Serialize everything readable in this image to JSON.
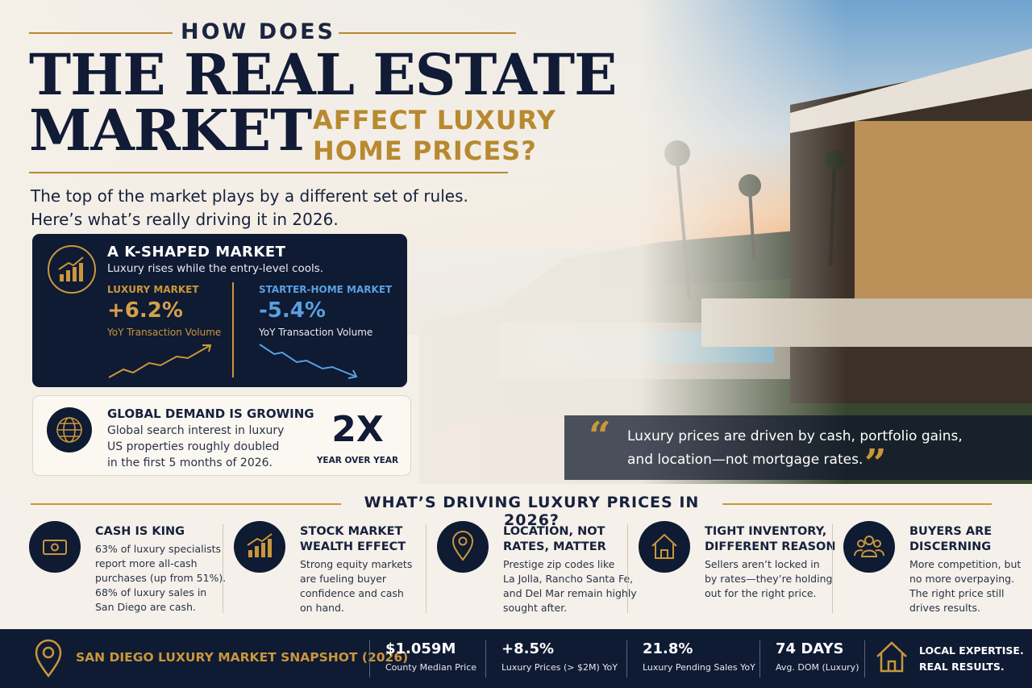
{
  "header": {
    "kicker": "HOW DOES",
    "title_line1": "THE REAL ESTATE",
    "title_line2": "MARKET",
    "accent_lines": [
      "AFFECT LUXURY",
      "HOME PRICES?"
    ]
  },
  "intro": [
    "The top of the market plays by a different set of rules.",
    "Here’s what’s really driving it in 2026."
  ],
  "k_market": {
    "title": "A K-SHAPED MARKET",
    "subtitle": "Luxury rises while the entry-level cools.",
    "luxury": {
      "label": "LUXURY MARKET",
      "value": "+6.2%",
      "caption": "YoY Transaction Volume"
    },
    "starter": {
      "label": "STARTER-HOME MARKET",
      "value": "-5.4%",
      "caption": "YoY Transaction Volume"
    }
  },
  "global": {
    "title": "GLOBAL DEMAND IS GROWING",
    "text": [
      "Global search interest in luxury",
      "US properties roughly doubled",
      "in the first 5 months of 2026."
    ],
    "figure": "2X",
    "figure_caption": "YEAR OVER YEAR"
  },
  "quote": [
    "Luxury prices are driven by cash, portfolio gains,",
    "and location—not mortgage rates."
  ],
  "drivers": {
    "heading": "WHAT’S DRIVING LUXURY PRICES IN 2026?",
    "items": [
      {
        "title": [
          "CASH IS KING"
        ],
        "text": [
          "63% of luxury specialists",
          "report more all-cash",
          "purchases (up from 51%).",
          "68% of luxury sales in",
          "San Diego are cash."
        ]
      },
      {
        "title": [
          "STOCK MARKET",
          "WEALTH EFFECT"
        ],
        "text": [
          "Strong equity markets",
          "are fueling buyer",
          "confidence and cash",
          "on hand."
        ]
      },
      {
        "title": [
          "LOCATION, NOT",
          "RATES, MATTER"
        ],
        "text": [
          "Prestige zip codes like",
          "La Jolla, Rancho Santa Fe,",
          "and Del Mar remain highly",
          "sought after."
        ]
      },
      {
        "title": [
          "TIGHT INVENTORY,",
          "DIFFERENT REASON"
        ],
        "text": [
          "Sellers aren’t locked in",
          "by rates—they’re holding",
          "out for the right price."
        ]
      },
      {
        "title": [
          "BUYERS ARE",
          "DISCERNING"
        ],
        "text": [
          "More competition, but",
          "no more overpaying.",
          "The right price still",
          "drives results."
        ]
      }
    ]
  },
  "footer": {
    "title": "SAN DIEGO LUXURY MARKET SNAPSHOT (2026)",
    "stats": [
      {
        "value": "$1.059M",
        "label": "County Median Price"
      },
      {
        "value": "+8.5%",
        "label": "Luxury Prices (> $2M) YoY"
      },
      {
        "value": "21.8%",
        "label": "Luxury Pending Sales YoY"
      },
      {
        "value": "74 DAYS",
        "label": "Avg. DOM (Luxury)"
      }
    ],
    "tagline": [
      "LOCAL EXPERTISE.",
      "REAL RESULTS."
    ]
  }
}
